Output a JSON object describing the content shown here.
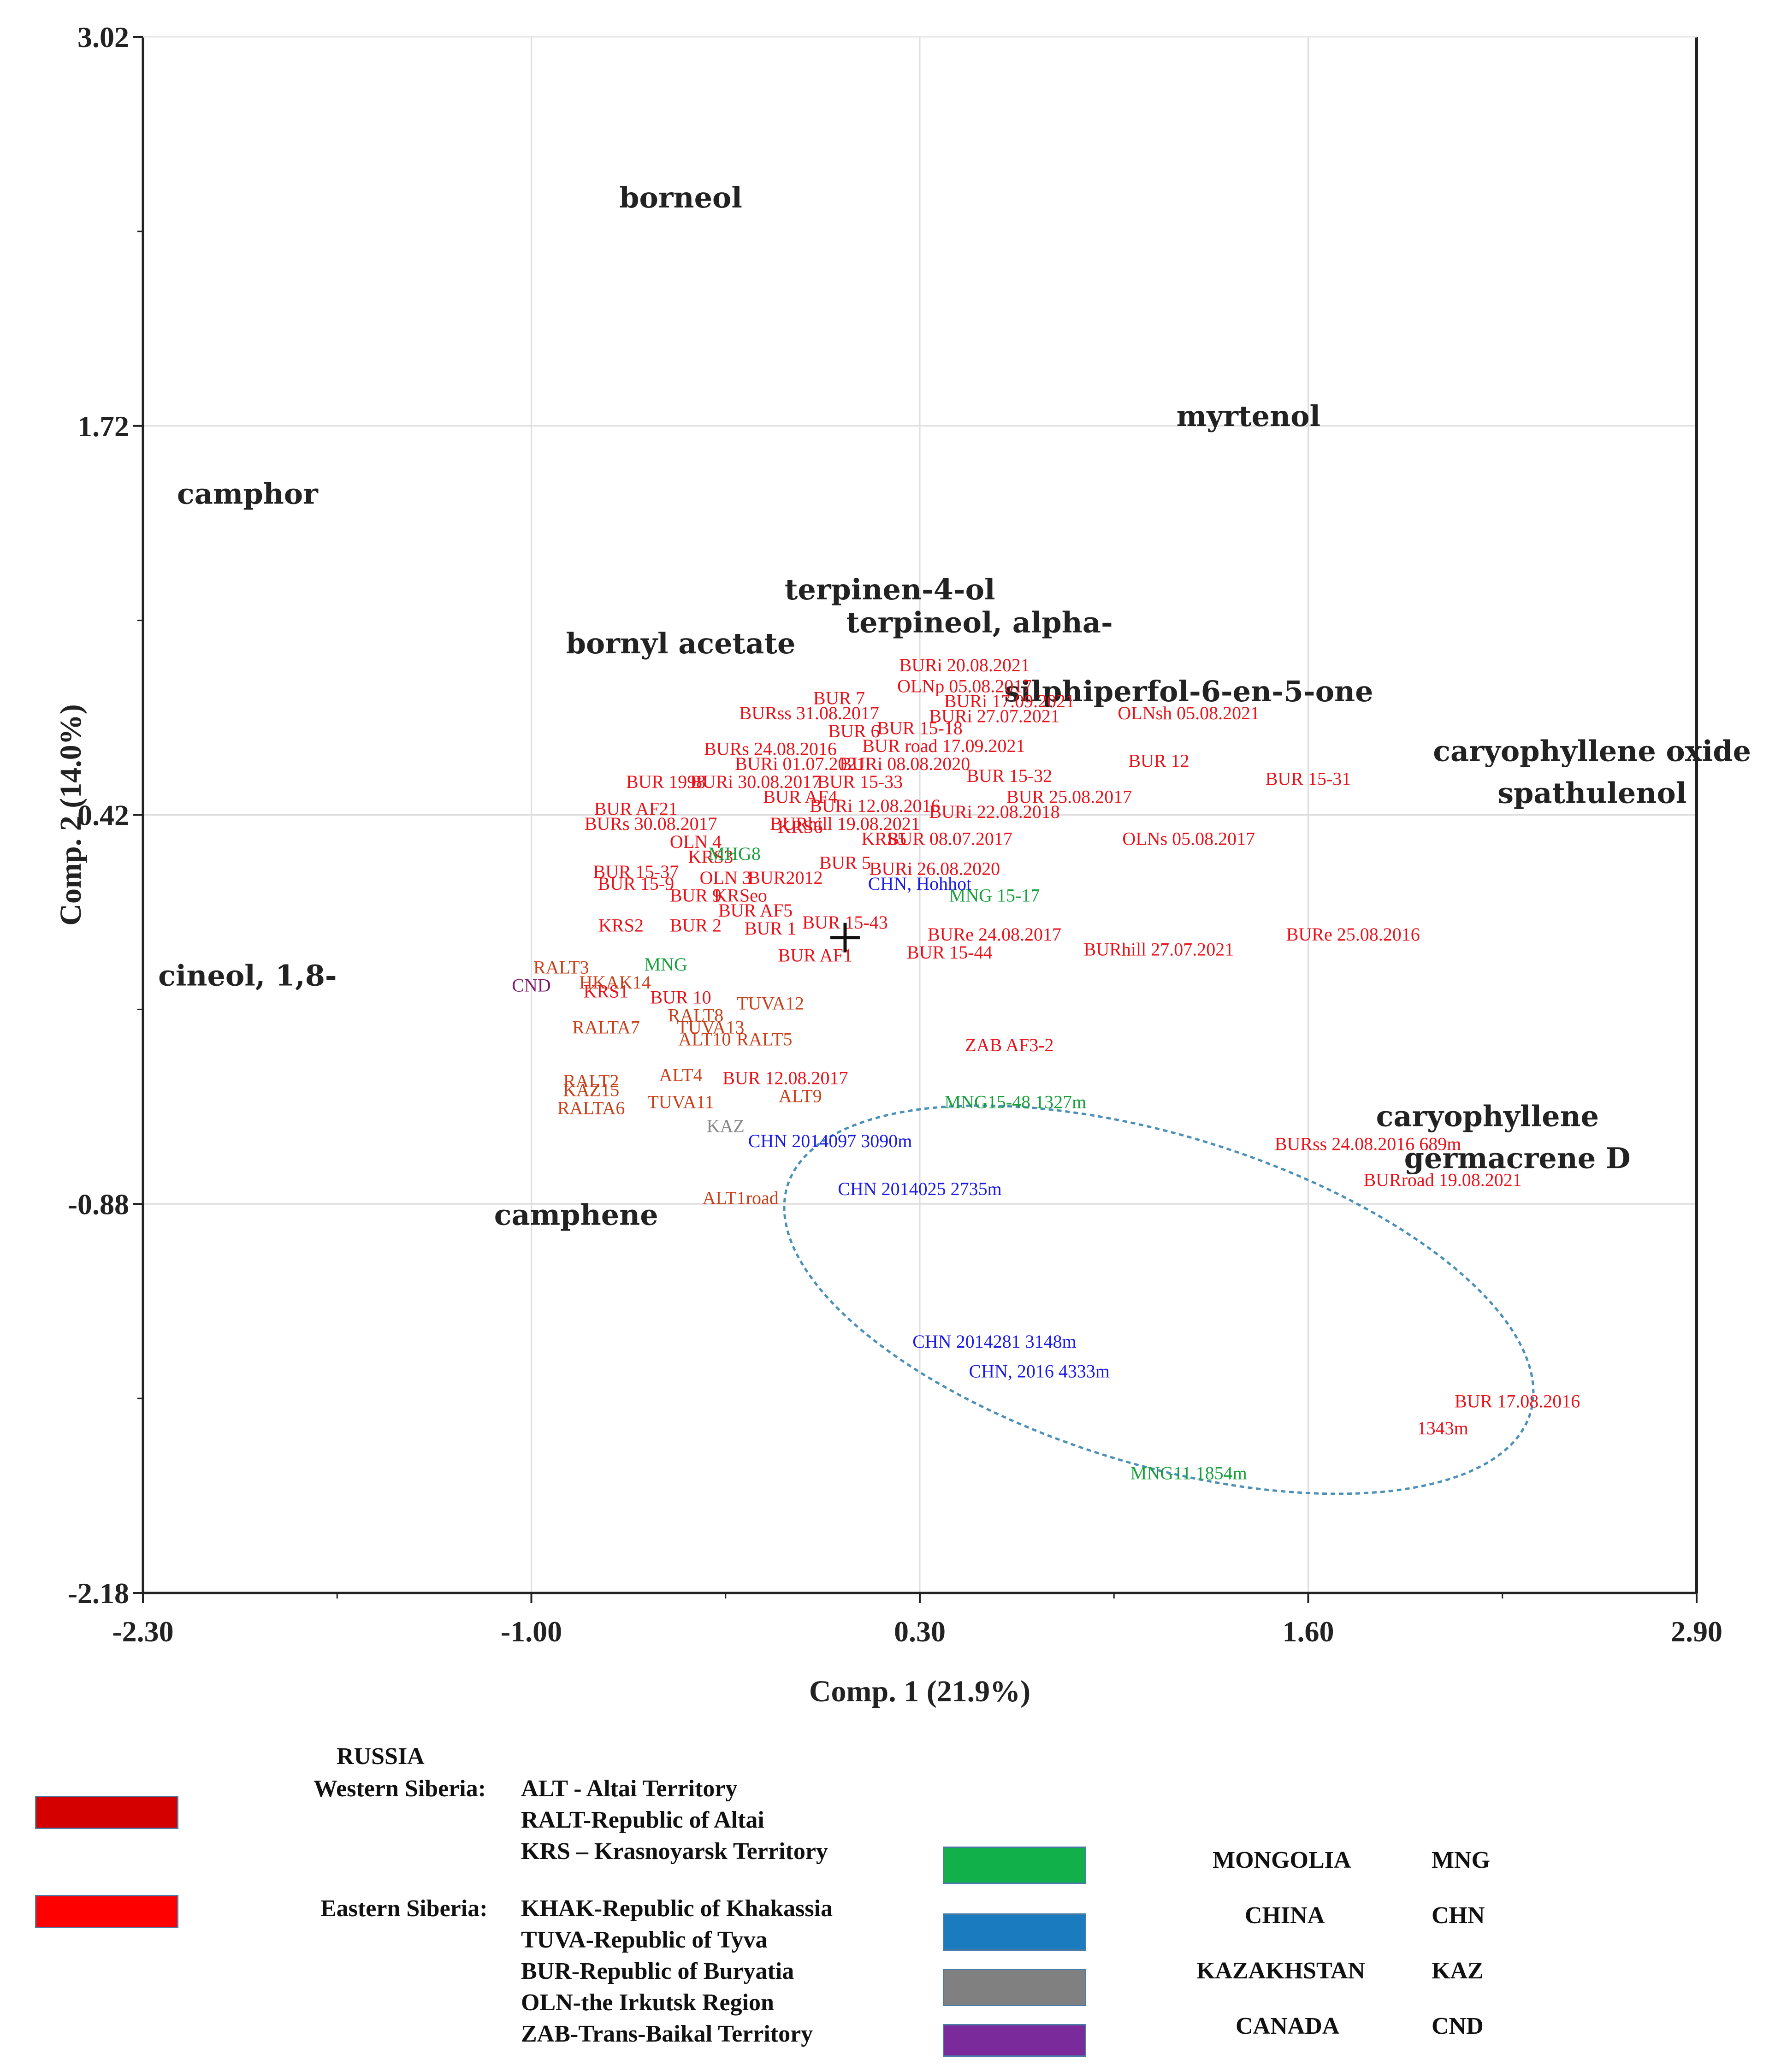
{
  "chart_data": {
    "type": "scatter",
    "xlabel": "Comp. 1 (21.9%)",
    "ylabel": "Comp. 2 (14.0%)",
    "xlim": [
      -2.3,
      2.9
    ],
    "ylim": [
      -2.18,
      3.02
    ],
    "xticks": [
      "-2.30",
      "-1.00",
      "0.30",
      "1.60",
      "2.90"
    ],
    "yticks": [
      "3.02",
      "1.72",
      "0.42",
      "-0.88",
      "-2.18"
    ],
    "grid": true,
    "variables": [
      {
        "label": "borneol",
        "x": -0.5,
        "y": 2.45
      },
      {
        "label": "myrtenol",
        "x": 1.4,
        "y": 1.72
      },
      {
        "label": "camphor",
        "x": -1.95,
        "y": 1.46
      },
      {
        "label": "terpinen-4-ol",
        "x": 0.2,
        "y": 1.14
      },
      {
        "label": "terpineol, alpha-",
        "x": 0.5,
        "y": 1.03
      },
      {
        "label": "bornyl acetate",
        "x": -0.5,
        "y": 0.96
      },
      {
        "label": "silphiperfol-6-en-5-one",
        "x": 1.2,
        "y": 0.8
      },
      {
        "label": "caryophyllene oxide",
        "x": 2.55,
        "y": 0.6
      },
      {
        "label": "spathulenol",
        "x": 2.55,
        "y": 0.46
      },
      {
        "label": "cineol, 1,8-",
        "x": -1.95,
        "y": -0.15
      },
      {
        "label": "caryophyllene",
        "x": 2.2,
        "y": -0.62
      },
      {
        "label": "germacrene D",
        "x": 2.3,
        "y": -0.76
      },
      {
        "label": "camphene",
        "x": -0.85,
        "y": -0.95
      }
    ],
    "series": [
      {
        "color": "#e8121a",
        "points": [
          {
            "label": "BURi 20.08.2021",
            "x": 0.45,
            "y": 0.9
          },
          {
            "label": "OLNp 05.08.2017",
            "x": 0.45,
            "y": 0.83
          },
          {
            "label": "BURi 17.09.2021",
            "x": 0.6,
            "y": 0.78
          },
          {
            "label": "BUR 7",
            "x": 0.03,
            "y": 0.79
          },
          {
            "label": "BURss 31.08.2017",
            "x": -0.07,
            "y": 0.74
          },
          {
            "label": "BURi 27.07.2021",
            "x": 0.55,
            "y": 0.73
          },
          {
            "label": "OLNsh 05.08.2021",
            "x": 1.2,
            "y": 0.74
          },
          {
            "label": "BUR 6",
            "x": 0.08,
            "y": 0.68
          },
          {
            "label": "BUR 15-18",
            "x": 0.3,
            "y": 0.69
          },
          {
            "label": "BUR road 17.09.2021",
            "x": 0.38,
            "y": 0.63
          },
          {
            "label": "BURs 24.08.2016",
            "x": -0.2,
            "y": 0.62
          },
          {
            "label": "BUR 12",
            "x": 1.1,
            "y": 0.58
          },
          {
            "label": "BURi 01.07.2021",
            "x": -0.1,
            "y": 0.57
          },
          {
            "label": "BURi 08.08.2020",
            "x": 0.25,
            "y": 0.57
          },
          {
            "label": "BUR 15-31",
            "x": 1.6,
            "y": 0.52
          },
          {
            "label": "BUR 1998",
            "x": -0.55,
            "y": 0.51
          },
          {
            "label": "BURi 30.08.2017",
            "x": -0.25,
            "y": 0.51
          },
          {
            "label": "BUR 15-33",
            "x": 0.1,
            "y": 0.51
          },
          {
            "label": "BUR 15-32",
            "x": 0.6,
            "y": 0.53
          },
          {
            "label": "BUR AF4",
            "x": -0.1,
            "y": 0.46
          },
          {
            "label": "BUR 25.08.2017",
            "x": 0.8,
            "y": 0.46
          },
          {
            "label": "BURi 12.08.2016",
            "x": 0.15,
            "y": 0.43
          },
          {
            "label": "BURi 22.08.2018",
            "x": 0.55,
            "y": 0.41
          },
          {
            "label": "BUR AF21",
            "x": -0.65,
            "y": 0.42
          },
          {
            "label": "BURs 30.08.2017",
            "x": -0.6,
            "y": 0.37
          },
          {
            "label": "KRS6",
            "x": -0.1,
            "y": 0.36
          },
          {
            "label": "BURhill 19.08.2021",
            "x": 0.05,
            "y": 0.37
          },
          {
            "label": "OLNs 05.08.2017",
            "x": 1.2,
            "y": 0.32
          },
          {
            "label": "OLN 4",
            "x": -0.45,
            "y": 0.31
          },
          {
            "label": "KRS5",
            "x": 0.18,
            "y": 0.32
          },
          {
            "label": "BUR 08.07.2017",
            "x": 0.4,
            "y": 0.32
          },
          {
            "label": "KRS3",
            "x": -0.4,
            "y": 0.26
          },
          {
            "label": "BUR 5",
            "x": 0.05,
            "y": 0.24
          },
          {
            "label": "BURi 26.08.2020",
            "x": 0.35,
            "y": 0.22
          },
          {
            "label": "BUR 15-37",
            "x": -0.65,
            "y": 0.21
          },
          {
            "label": "OLN 3",
            "x": -0.35,
            "y": 0.19
          },
          {
            "label": "BUR2012",
            "x": -0.15,
            "y": 0.19
          },
          {
            "label": "BUR 15-9",
            "x": -0.65,
            "y": 0.17
          },
          {
            "label": "BUR 9",
            "x": -0.45,
            "y": 0.13
          },
          {
            "label": "KRSeo",
            "x": -0.3,
            "y": 0.13
          },
          {
            "label": "BUR AF5",
            "x": -0.25,
            "y": 0.08
          },
          {
            "label": "KRS2",
            "x": -0.7,
            "y": 0.03
          },
          {
            "label": "BUR 2",
            "x": -0.45,
            "y": 0.03
          },
          {
            "label": "BUR 1",
            "x": -0.2,
            "y": 0.02
          },
          {
            "label": "BUR 15-43",
            "x": 0.05,
            "y": 0.04
          },
          {
            "label": "BURe 24.08.2017",
            "x": 0.55,
            "y": 0.0
          },
          {
            "label": "BURe 25.08.2016",
            "x": 1.75,
            "y": 0.0
          },
          {
            "label": "BUR AF1",
            "x": -0.05,
            "y": -0.07
          },
          {
            "label": "BUR 15-44",
            "x": 0.4,
            "y": -0.06
          },
          {
            "label": "BURhill 27.07.2021",
            "x": 1.1,
            "y": -0.05
          },
          {
            "label": "KRS1",
            "x": -0.75,
            "y": -0.19
          },
          {
            "label": "BUR 10",
            "x": -0.5,
            "y": -0.21
          },
          {
            "label": "ZAB AF3-2",
            "x": 0.6,
            "y": -0.37
          },
          {
            "label": "BUR 12.08.2017",
            "x": -0.15,
            "y": -0.48
          },
          {
            "label": "BURss 24.08.2016 689m",
            "x": 1.8,
            "y": -0.7
          },
          {
            "label": "BURroad 19.08.2021",
            "x": 2.05,
            "y": -0.82
          },
          {
            "label": "BUR 17.08.2016",
            "x": 2.3,
            "y": -1.56
          },
          {
            "label": "1343m",
            "x": 2.05,
            "y": -1.65
          }
        ]
      },
      {
        "color": "#c8401a",
        "points": [
          {
            "label": "RALT3",
            "x": -0.9,
            "y": -0.11
          },
          {
            "label": "HKAK14",
            "x": -0.72,
            "y": -0.16
          },
          {
            "label": "TUVA12",
            "x": -0.2,
            "y": -0.23
          },
          {
            "label": "RALT8",
            "x": -0.45,
            "y": -0.27
          },
          {
            "label": "RALTA7",
            "x": -0.75,
            "y": -0.31
          },
          {
            "label": "TUVA13",
            "x": -0.4,
            "y": -0.31
          },
          {
            "label": "ALT10",
            "x": -0.42,
            "y": -0.35
          },
          {
            "label": "RALT5",
            "x": -0.22,
            "y": -0.35
          },
          {
            "label": "ALT4",
            "x": -0.5,
            "y": -0.47
          },
          {
            "label": "RALT2",
            "x": -0.8,
            "y": -0.49
          },
          {
            "label": "KAZ15",
            "x": -0.8,
            "y": -0.52
          },
          {
            "label": "ALT9",
            "x": -0.1,
            "y": -0.54
          },
          {
            "label": "TUVA11",
            "x": -0.5,
            "y": -0.56
          },
          {
            "label": "RALTA6",
            "x": -0.8,
            "y": -0.58
          },
          {
            "label": "ALT1road",
            "x": -0.3,
            "y": -0.88
          }
        ]
      },
      {
        "color": "#17a03a",
        "points": [
          {
            "label": "MHG8",
            "x": -0.32,
            "y": 0.27
          },
          {
            "label": "MNG 15-17",
            "x": 0.55,
            "y": 0.13
          },
          {
            "label": "MNG",
            "x": -0.55,
            "y": -0.1
          },
          {
            "label": "MNG15-48 1327m",
            "x": 0.62,
            "y": -0.56
          },
          {
            "label": "MNG11 1854m",
            "x": 1.2,
            "y": -1.8
          }
        ]
      },
      {
        "color": "#1a1ae6",
        "points": [
          {
            "label": "CHN, Hohhot",
            "x": 0.3,
            "y": 0.17
          },
          {
            "label": "CHN 2014097 3090m",
            "x": 0.0,
            "y": -0.69
          },
          {
            "label": "CHN 2014025 2735m",
            "x": 0.3,
            "y": -0.85
          },
          {
            "label": "CHN 2014281 3148m",
            "x": 0.55,
            "y": -1.36
          },
          {
            "label": "CHN, 2016 4333m",
            "x": 0.7,
            "y": -1.46
          }
        ]
      },
      {
        "color": "#888888",
        "points": [
          {
            "label": "KAZ",
            "x": -0.35,
            "y": -0.64
          }
        ]
      },
      {
        "color": "#7a1a6a",
        "points": [
          {
            "label": "CND",
            "x": -1.0,
            "y": -0.17
          }
        ]
      }
    ],
    "origin_marker": {
      "x": 0.05,
      "y": 0.01
    },
    "ellipse": {
      "cx": 1.1,
      "cy": -1.2,
      "rx": 1.3,
      "ry": 0.55,
      "angle_deg": 17
    }
  },
  "legend": {
    "russia_title": "RUSSIA",
    "western_label": "Western Siberia:",
    "eastern_label": "Eastern Siberia:",
    "western_items": [
      "ALT - Altai Territory",
      "RALT-Republic of Altai",
      "KRS – Krasnoyarsk Territory"
    ],
    "eastern_items": [
      "KHAK-Republic of Khakassia",
      "TUVA-Republic of Tyva",
      "BUR-Republic of Buryatia",
      "OLN-the Irkutsk Region",
      "ZAB-Trans-Baikal Territory"
    ],
    "countries": [
      {
        "name": "MONGOLIA",
        "code": "MNG"
      },
      {
        "name": "CHINA",
        "code": "CHN"
      },
      {
        "name": "KAZAKHSTAN",
        "code": "KAZ"
      },
      {
        "name": "CANADA",
        "code": "CND"
      }
    ],
    "colors": {
      "western": "#d40000",
      "eastern": "#ff0000",
      "mongolia": "#12b04a",
      "china": "#1a7bbf",
      "kazakhstan": "#808080",
      "canada": "#7a2a9a"
    }
  }
}
